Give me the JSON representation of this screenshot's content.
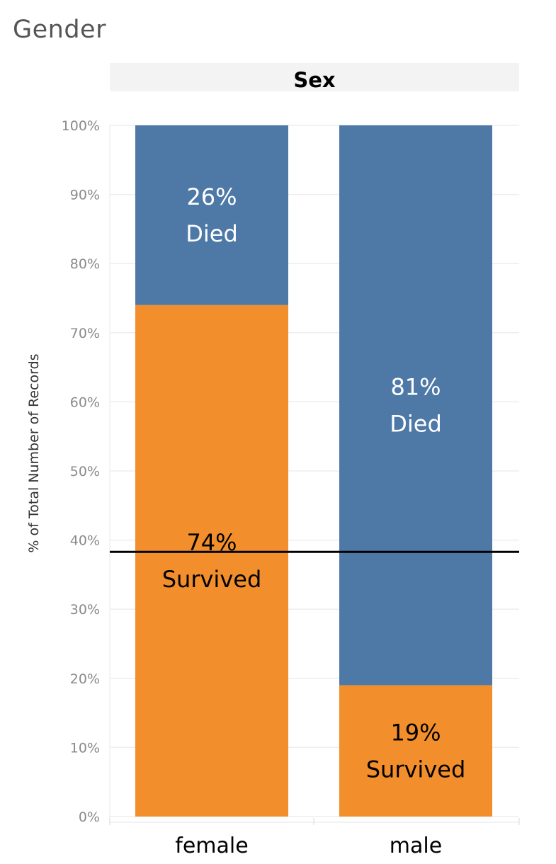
{
  "page": {
    "title": "Gender"
  },
  "chart_data": {
    "type": "bar",
    "stacked": true,
    "facet_header": "Sex",
    "ylabel": "% of Total Number of Records",
    "xlabel": "",
    "ylim": [
      0,
      100
    ],
    "y_ticks": [
      "0%",
      "10%",
      "20%",
      "30%",
      "40%",
      "50%",
      "60%",
      "70%",
      "80%",
      "90%",
      "100%"
    ],
    "grid": true,
    "categories": [
      "female",
      "male"
    ],
    "series": [
      {
        "name": "Survived",
        "color": "#F28E2B",
        "label_color": "#000000",
        "values": [
          74,
          19
        ],
        "labels": [
          "74%",
          "19%"
        ]
      },
      {
        "name": "Died",
        "color": "#4E79A7",
        "label_color": "#ffffff",
        "values": [
          26,
          81
        ],
        "labels": [
          "26%",
          "81%"
        ]
      }
    ],
    "reference_line": {
      "value": 38.3,
      "color": "#000000"
    }
  }
}
